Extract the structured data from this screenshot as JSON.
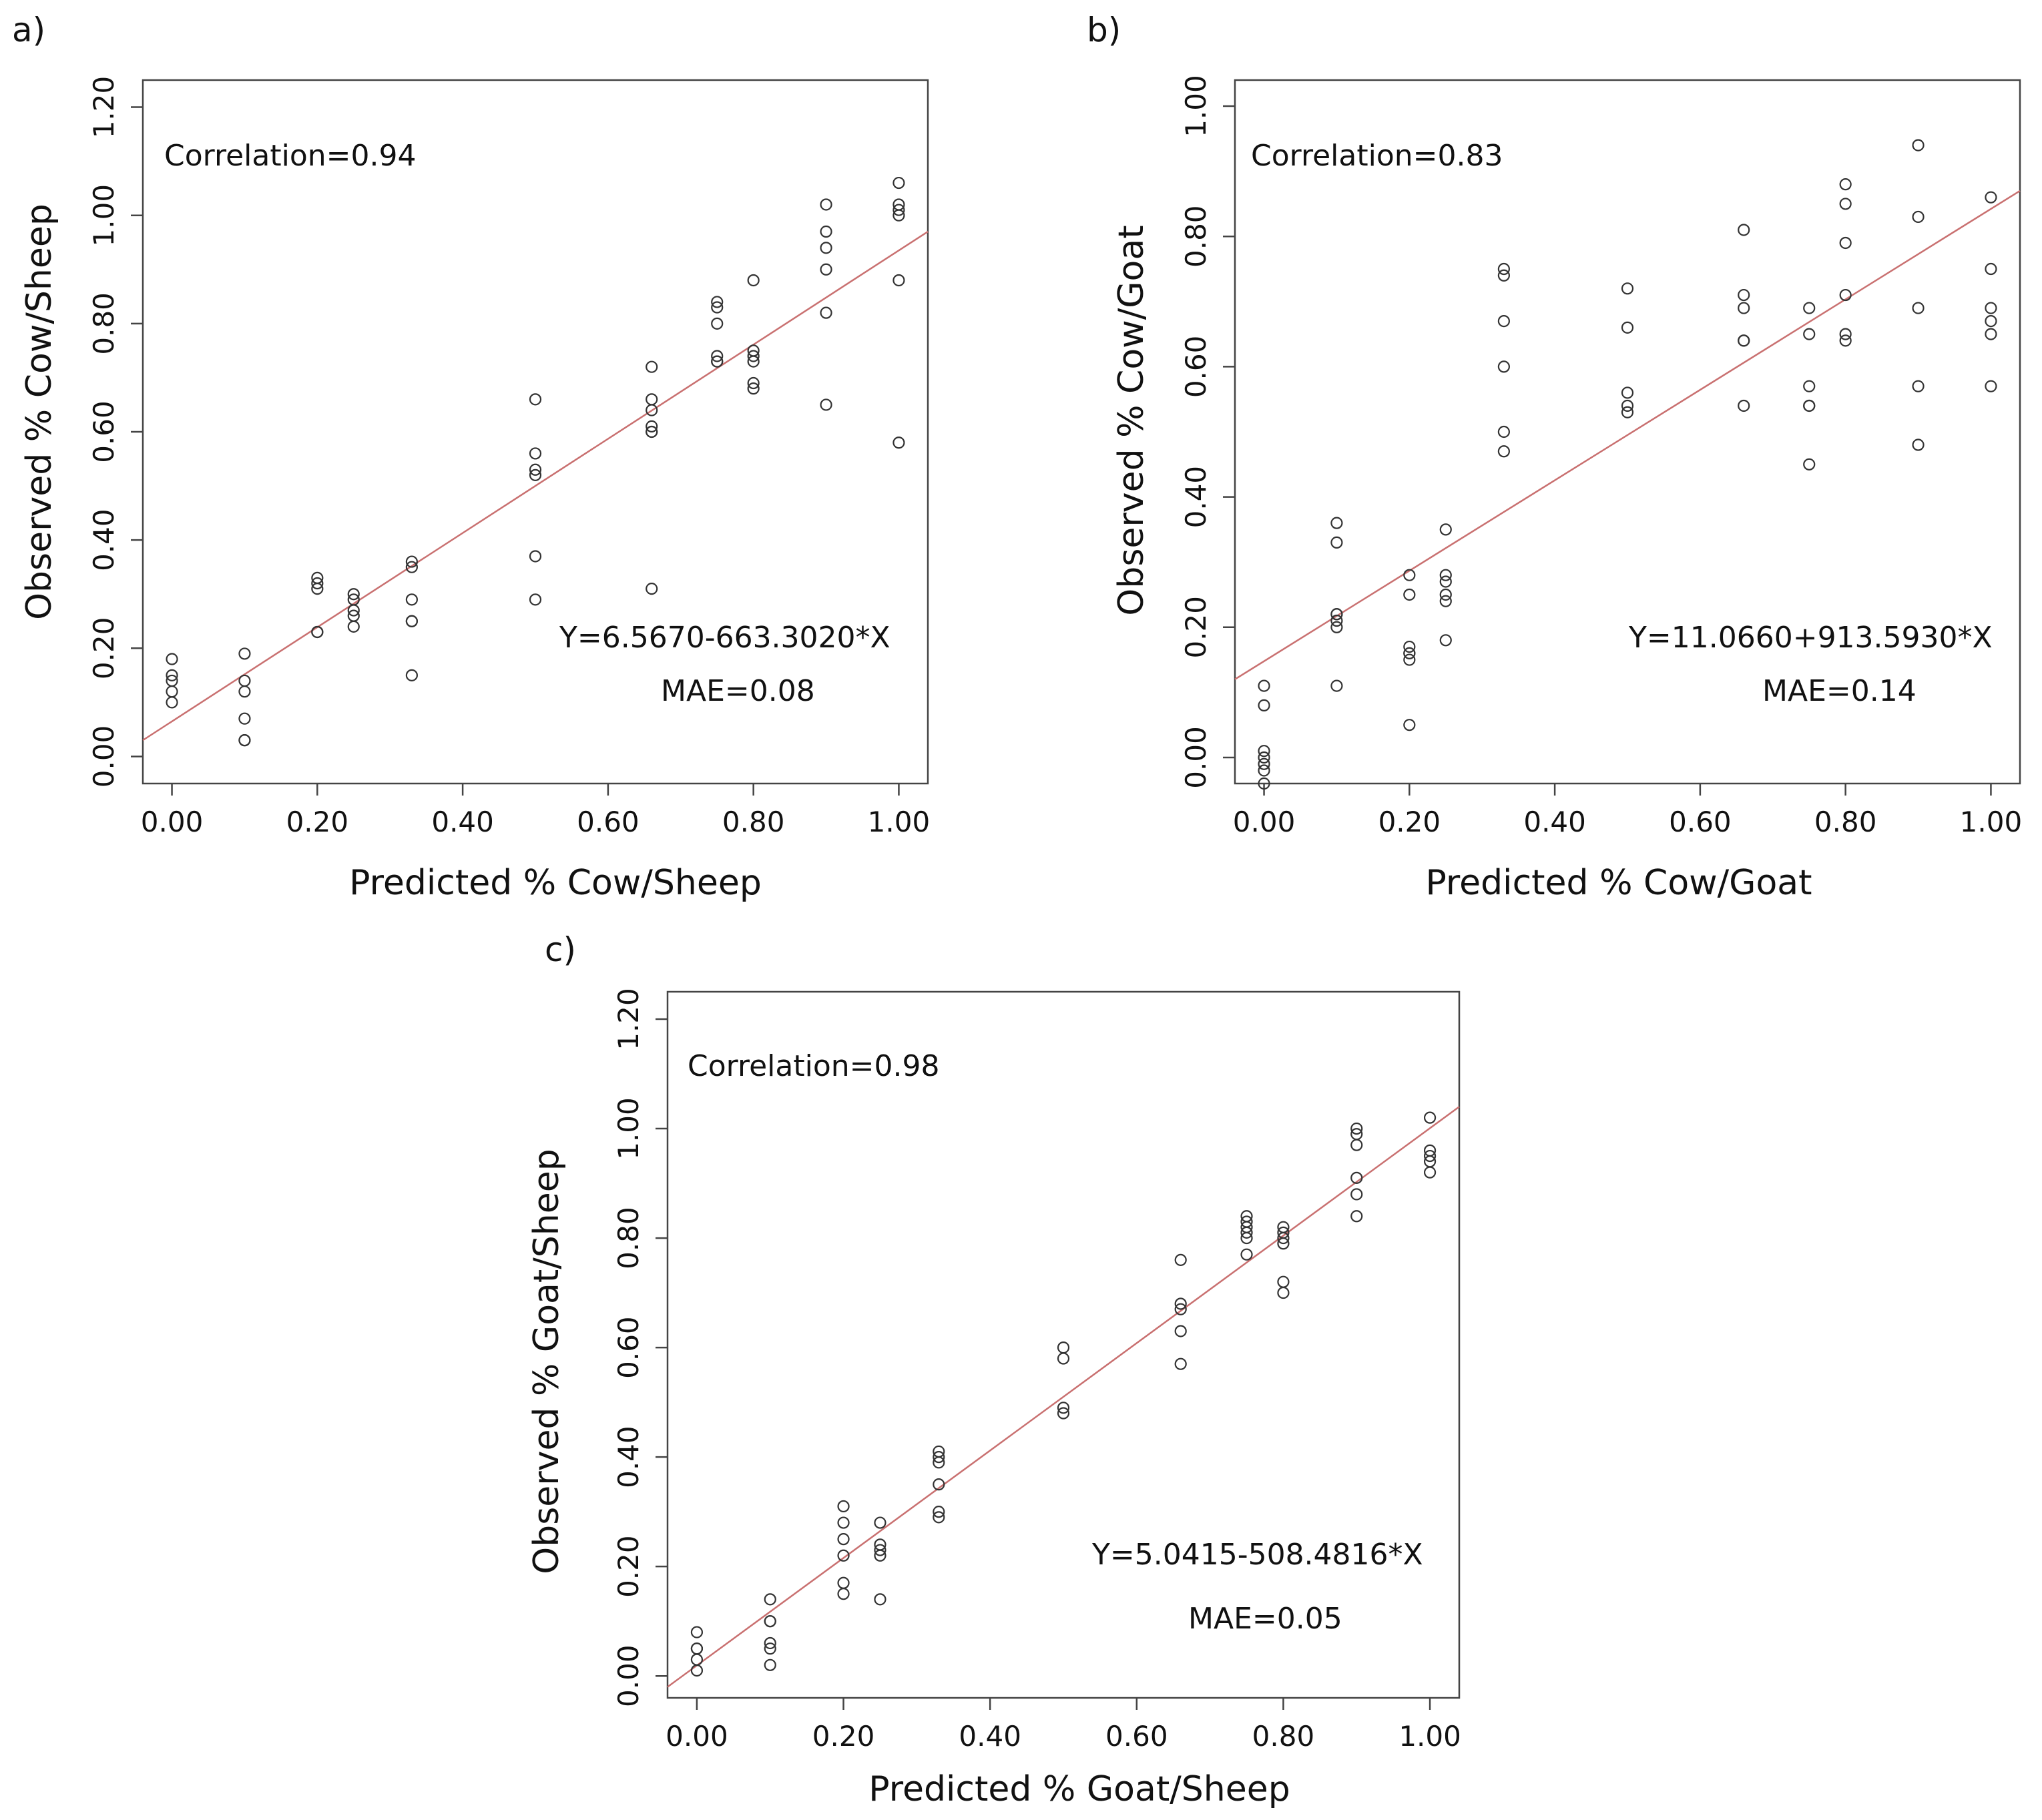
{
  "colors": {
    "point": "#333333",
    "fit_line": "#c97070",
    "frame": "#444444"
  },
  "chart_data": [
    {
      "type": "scatter",
      "panel": "a)",
      "xlabel": "Predicted % Cow/Sheep",
      "ylabel": "Observed % Cow/Sheep",
      "xlim": [
        -0.04,
        1.04
      ],
      "ylim": [
        -0.05,
        1.25
      ],
      "xticks": [
        "0.00",
        "0.20",
        "0.40",
        "0.60",
        "0.80",
        "1.00"
      ],
      "yticks": [
        "0.00",
        "0.20",
        "0.40",
        "0.60",
        "0.80",
        "1.00",
        "1.20"
      ],
      "correlation_text": "Correlation=0.94",
      "equation_text": "Y=6.5670-663.3020*X",
      "mae_text": "MAE=0.08",
      "fit_line": {
        "x": [
          -0.04,
          1.04
        ],
        "y": [
          0.03,
          0.97
        ]
      },
      "points": {
        "x": [
          0,
          0,
          0,
          0,
          0,
          0.1,
          0.1,
          0.1,
          0.1,
          0.1,
          0.1,
          0.2,
          0.2,
          0.2,
          0.2,
          0.2,
          0.25,
          0.25,
          0.25,
          0.25,
          0.25,
          0.33,
          0.33,
          0.33,
          0.33,
          0.33,
          0.33,
          0.5,
          0.5,
          0.5,
          0.5,
          0.5,
          0.5,
          0.66,
          0.66,
          0.66,
          0.66,
          0.66,
          0.66,
          0.66,
          0.75,
          0.75,
          0.75,
          0.75,
          0.75,
          0.75,
          0.8,
          0.8,
          0.8,
          0.8,
          0.8,
          0.8,
          0.9,
          0.9,
          0.9,
          0.9,
          0.9,
          0.9,
          1.0,
          1.0,
          1.0,
          1.0,
          1.0,
          1.0
        ],
        "y": [
          0.18,
          0.15,
          0.14,
          0.12,
          0.1,
          0.19,
          0.14,
          0.12,
          0.07,
          0.03,
          0.03,
          0.33,
          0.32,
          0.31,
          0.23,
          0.23,
          0.3,
          0.29,
          0.27,
          0.26,
          0.24,
          0.36,
          0.35,
          0.29,
          0.25,
          0.25,
          0.15,
          0.66,
          0.56,
          0.53,
          0.52,
          0.37,
          0.29,
          0.72,
          0.66,
          0.64,
          0.61,
          0.6,
          0.6,
          0.31,
          0.84,
          0.83,
          0.8,
          0.74,
          0.73,
          0.73,
          0.88,
          0.75,
          0.74,
          0.73,
          0.69,
          0.68,
          1.02,
          0.97,
          0.94,
          0.9,
          0.82,
          0.65,
          1.06,
          1.02,
          1.01,
          1.0,
          0.88,
          0.58
        ]
      }
    },
    {
      "type": "scatter",
      "panel": "b)",
      "xlabel": "Predicted % Cow/Goat",
      "ylabel": "Observed % Cow/Goat",
      "xlim": [
        -0.04,
        1.04
      ],
      "ylim": [
        -0.04,
        1.04
      ],
      "xticks": [
        "0.00",
        "0.20",
        "0.40",
        "0.60",
        "0.80",
        "1.00"
      ],
      "yticks": [
        "0.00",
        "0.20",
        "0.40",
        "0.60",
        "0.80",
        "1.00"
      ],
      "correlation_text": "Correlation=0.83",
      "equation_text": "Y=11.0660+913.5930*X",
      "mae_text": "MAE=0.14",
      "fit_line": {
        "x": [
          -0.04,
          1.04
        ],
        "y": [
          0.12,
          0.87
        ]
      },
      "points": {
        "x": [
          0,
          0,
          0,
          0,
          0,
          0,
          0,
          0.1,
          0.1,
          0.1,
          0.1,
          0.1,
          0.1,
          0.1,
          0.2,
          0.2,
          0.2,
          0.2,
          0.2,
          0.2,
          0.2,
          0.25,
          0.25,
          0.25,
          0.25,
          0.25,
          0.25,
          0.33,
          0.33,
          0.33,
          0.33,
          0.33,
          0.33,
          0.5,
          0.5,
          0.5,
          0.5,
          0.5,
          0.66,
          0.66,
          0.66,
          0.66,
          0.66,
          0.66,
          0.75,
          0.75,
          0.75,
          0.75,
          0.75,
          0.75,
          0.8,
          0.8,
          0.8,
          0.8,
          0.8,
          0.8,
          0.9,
          0.9,
          0.9,
          0.9,
          0.9,
          1.0,
          1.0,
          1.0,
          1.0,
          1.0,
          1.0
        ],
        "y": [
          0.11,
          0.08,
          0.01,
          0.0,
          -0.01,
          -0.02,
          -0.04,
          0.36,
          0.33,
          0.22,
          0.22,
          0.21,
          0.2,
          0.11,
          0.28,
          0.25,
          0.17,
          0.16,
          0.16,
          0.15,
          0.05,
          0.35,
          0.28,
          0.27,
          0.25,
          0.24,
          0.18,
          0.75,
          0.74,
          0.67,
          0.6,
          0.5,
          0.47,
          0.72,
          0.66,
          0.56,
          0.54,
          0.53,
          0.81,
          0.71,
          0.69,
          0.64,
          0.64,
          0.54,
          0.69,
          0.65,
          0.57,
          0.54,
          0.54,
          0.45,
          0.88,
          0.85,
          0.79,
          0.71,
          0.65,
          0.64,
          0.94,
          0.83,
          0.69,
          0.57,
          0.48,
          0.86,
          0.75,
          0.69,
          0.67,
          0.65,
          0.57
        ]
      }
    },
    {
      "type": "scatter",
      "panel": "c)",
      "xlabel": "Predicted % Goat/Sheep",
      "ylabel": "Observed % Goat/Sheep",
      "xlim": [
        -0.04,
        1.04
      ],
      "ylim": [
        -0.04,
        1.25
      ],
      "xticks": [
        "0.00",
        "0.20",
        "0.40",
        "0.60",
        "0.80",
        "1.00"
      ],
      "yticks": [
        "0.00",
        "0.20",
        "0.40",
        "0.60",
        "0.80",
        "1.00",
        "1.20"
      ],
      "correlation_text": "Correlation=0.98",
      "equation_text": "Y=5.0415-508.4816*X",
      "mae_text": "MAE=0.05",
      "fit_line": {
        "x": [
          -0.04,
          1.04
        ],
        "y": [
          -0.02,
          1.04
        ]
      },
      "points": {
        "x": [
          0,
          0,
          0,
          0,
          0,
          0.1,
          0.1,
          0.1,
          0.1,
          0.1,
          0.1,
          0.2,
          0.2,
          0.2,
          0.2,
          0.2,
          0.2,
          0.25,
          0.25,
          0.25,
          0.25,
          0.25,
          0.33,
          0.33,
          0.33,
          0.33,
          0.33,
          0.33,
          0.5,
          0.5,
          0.5,
          0.5,
          0.66,
          0.66,
          0.66,
          0.66,
          0.66,
          0.75,
          0.75,
          0.75,
          0.75,
          0.75,
          0.75,
          0.8,
          0.8,
          0.8,
          0.8,
          0.8,
          0.8,
          0.9,
          0.9,
          0.9,
          0.9,
          0.9,
          0.9,
          1.0,
          1.0,
          1.0,
          1.0,
          1.0
        ],
        "y": [
          0.08,
          0.05,
          0.05,
          0.03,
          0.01,
          0.14,
          0.1,
          0.1,
          0.06,
          0.05,
          0.02,
          0.31,
          0.28,
          0.25,
          0.22,
          0.17,
          0.15,
          0.28,
          0.24,
          0.23,
          0.22,
          0.14,
          0.41,
          0.4,
          0.39,
          0.35,
          0.3,
          0.29,
          0.6,
          0.58,
          0.49,
          0.48,
          0.76,
          0.68,
          0.67,
          0.63,
          0.57,
          0.84,
          0.83,
          0.82,
          0.81,
          0.8,
          0.77,
          0.82,
          0.81,
          0.8,
          0.79,
          0.72,
          0.7,
          1.0,
          0.99,
          0.97,
          0.91,
          0.88,
          0.84,
          1.02,
          0.96,
          0.95,
          0.94,
          0.92
        ]
      }
    }
  ]
}
